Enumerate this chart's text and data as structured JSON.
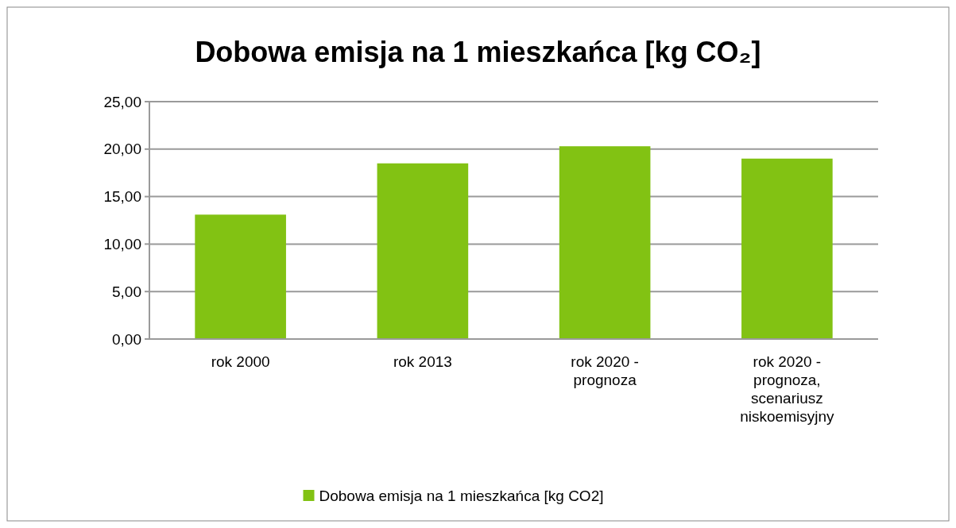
{
  "chart_data": {
    "type": "bar",
    "title": "Dobowa emisja na 1 mieszkańca [kg CO₂]",
    "categories": [
      "rok 2000",
      "rok 2013",
      "rok 2020 - prognoza",
      "rok 2020 - prognoza, scenariusz niskoemisyjny"
    ],
    "series": [
      {
        "name": "Dobowa emisja na 1 mieszkańca [kg CO2]",
        "color": "#82c213",
        "values": [
          13.1,
          18.5,
          20.3,
          19.0
        ]
      }
    ],
    "ylim": [
      0,
      25
    ],
    "yticks": [
      {
        "value": 0,
        "label": "0,00"
      },
      {
        "value": 5,
        "label": "5,00"
      },
      {
        "value": 10,
        "label": "10,00"
      },
      {
        "value": 15,
        "label": "15,00"
      },
      {
        "value": 20,
        "label": "20,00"
      },
      {
        "value": 25,
        "label": "25,00"
      }
    ],
    "grid": "y",
    "legend": "bottom"
  }
}
